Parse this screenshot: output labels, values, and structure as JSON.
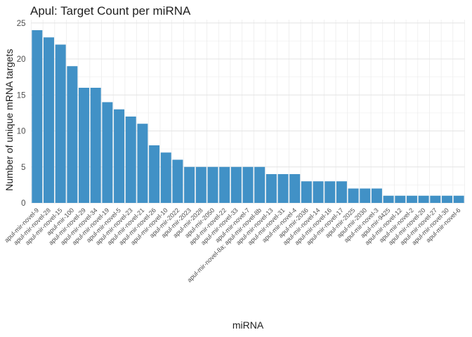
{
  "chart_data": {
    "type": "bar",
    "title": "Apul: Target Count per miRNA",
    "xlabel": "miRNA",
    "ylabel": "Number of unique mRNA targets",
    "ylim": [
      0,
      25
    ],
    "yticks": [
      0,
      5,
      10,
      15,
      20,
      25
    ],
    "y_minor_step": 2.5,
    "grid": "on",
    "legend": "none",
    "bar_color": "#4191c6",
    "grid_major_color": "#e4e4e4",
    "grid_minor_color": "#f1f1f1",
    "grid_vertical_color": "#ececec",
    "tick_label_color": "#4d4d4d",
    "text_color": "#1f1f1f",
    "background_color": "#ffffff",
    "categories": [
      "apul-mir-novel-9",
      "apul-mir-novel-28",
      "apul-mir-novel-15",
      "apul-mir-100",
      "apul-mir-novel-29",
      "apul-mir-novel-34",
      "apul-mir-novel-19",
      "apul-mir-novel-5",
      "apul-mir-novel-23",
      "apul-mir-novel-21",
      "apul-mir-novel-26",
      "apul-mir-novel-10",
      "apul-mir-2022",
      "apul-mir-2023",
      "apul-mir-2028",
      "apul-mir-2050",
      "apul-mir-novel-22",
      "apul-mir-novel-33",
      "apul-mir-novel-7",
      "apul-mir-novel-8a; apul-mir-novel-8b",
      "apul-mir-novel-13",
      "apul-mir-novel-31",
      "apul-mir-novel-4",
      "apul-mir-2036",
      "apul-mir-novel-14",
      "apul-mir-novel-16",
      "apul-mir-novel-17",
      "apul-mir-2025",
      "apul-mir-2030",
      "apul-mir-novel-3",
      "apul-mir-9425",
      "apul-mir-novel-12",
      "apul-mir-novel-2",
      "apul-mir-novel-20",
      "apul-mir-novel-27",
      "apul-mir-novel-30",
      "apul-mir-novel-6"
    ],
    "values": [
      24,
      23,
      22,
      19,
      16,
      16,
      14,
      13,
      12,
      11,
      8,
      7,
      6,
      5,
      5,
      5,
      5,
      5,
      5,
      5,
      4,
      4,
      4,
      3,
      3,
      3,
      3,
      2,
      2,
      2,
      1,
      1,
      1,
      1,
      1,
      1,
      1
    ]
  }
}
